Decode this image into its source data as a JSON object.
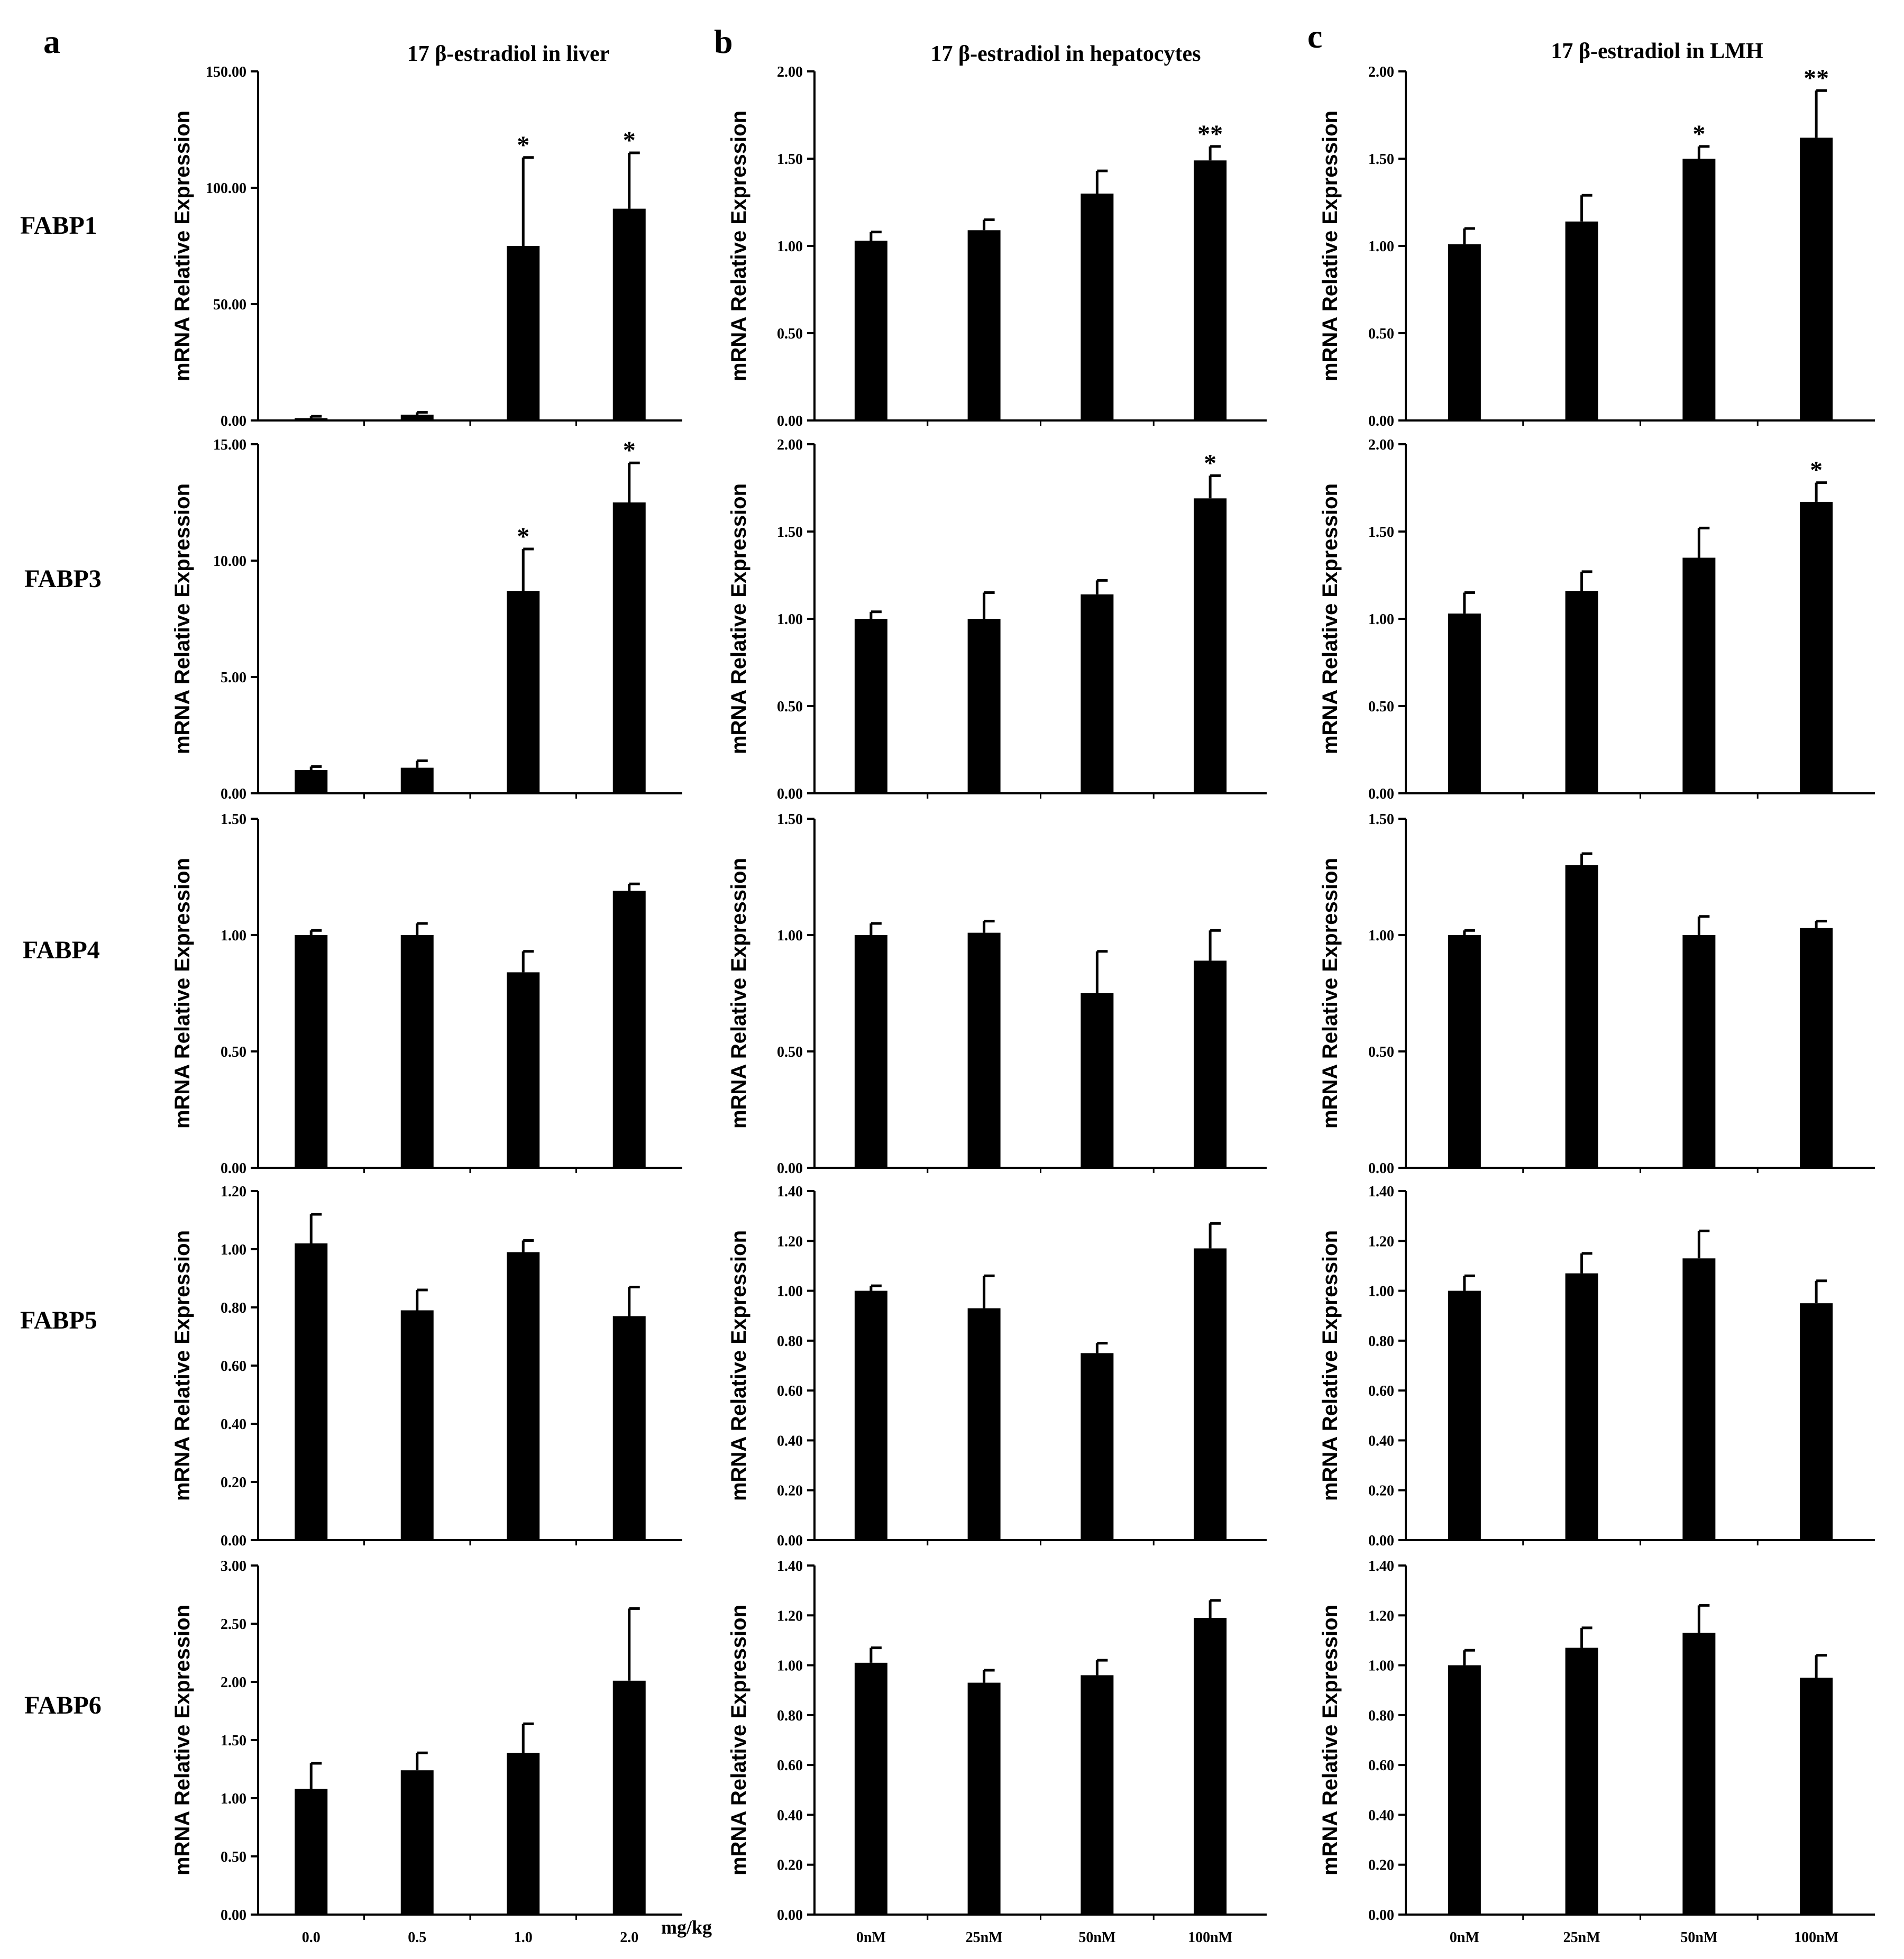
{
  "column_letters": [
    "a",
    "b",
    "c"
  ],
  "column_titles": [
    "17 β-estradiol in liver",
    "17 β-estradiol in hepatocytes",
    "17 β-estradiol in LMH"
  ],
  "row_labels": [
    "FABP1",
    "FABP3",
    "FABP4",
    "FABP5",
    "FABP6"
  ],
  "x_unit_label": "mg/kg",
  "chart_data": [
    {
      "type": "bar",
      "column": "a",
      "gene": "FABP1",
      "title": "17 β-estradiol in liver",
      "ylabel": "mRNA Relative Expression",
      "categories": [
        "0.0",
        "0.5",
        "1.0",
        "2.0"
      ],
      "values": [
        1.0,
        2.5,
        75,
        91
      ],
      "errors": [
        0.8,
        1.0,
        38,
        24
      ],
      "significance": [
        "",
        "",
        "*",
        "*"
      ],
      "ylim": [
        0,
        150
      ],
      "yticks": [
        "0.00",
        "50.00",
        "100.00",
        "150.00"
      ]
    },
    {
      "type": "bar",
      "column": "b",
      "gene": "FABP1",
      "title": "17 β-estradiol in hepatocytes",
      "ylabel": "mRNA Relative Expression",
      "categories": [
        "0nM",
        "25nM",
        "50nM",
        "100nM"
      ],
      "values": [
        1.03,
        1.09,
        1.3,
        1.49
      ],
      "errors": [
        0.05,
        0.06,
        0.13,
        0.08
      ],
      "significance": [
        "",
        "",
        "",
        "**"
      ],
      "ylim": [
        0,
        2
      ],
      "yticks": [
        "0.00",
        "0.50",
        "1.00",
        "1.50",
        "2.00"
      ]
    },
    {
      "type": "bar",
      "column": "c",
      "gene": "FABP1",
      "title": "17 β-estradiol in LMH",
      "ylabel": "mRNA Relative Expression",
      "categories": [
        "0nM",
        "25nM",
        "50nM",
        "100nM"
      ],
      "values": [
        1.01,
        1.14,
        1.5,
        1.62
      ],
      "errors": [
        0.09,
        0.15,
        0.07,
        0.27
      ],
      "significance": [
        "",
        "",
        "*",
        "**"
      ],
      "ylim": [
        0,
        2
      ],
      "yticks": [
        "0.00",
        "0.50",
        "1.00",
        "1.50",
        "2.00"
      ]
    },
    {
      "type": "bar",
      "column": "a",
      "gene": "FABP3",
      "ylabel": "mRNA Relative Expression",
      "categories": [
        "0.0",
        "0.5",
        "1.0",
        "2.0"
      ],
      "values": [
        1.0,
        1.1,
        8.7,
        12.5
      ],
      "errors": [
        0.15,
        0.3,
        1.8,
        1.7
      ],
      "significance": [
        "",
        "",
        "*",
        "*"
      ],
      "ylim": [
        0,
        15
      ],
      "yticks": [
        "0.00",
        "5.00",
        "10.00",
        "15.00"
      ]
    },
    {
      "type": "bar",
      "column": "b",
      "gene": "FABP3",
      "ylabel": "mRNA Relative Expression",
      "categories": [
        "0nM",
        "25nM",
        "50nM",
        "100nM"
      ],
      "values": [
        1.0,
        1.0,
        1.14,
        1.69
      ],
      "errors": [
        0.04,
        0.15,
        0.08,
        0.13
      ],
      "significance": [
        "",
        "",
        "",
        "*"
      ],
      "ylim": [
        0,
        2
      ],
      "yticks": [
        "0.00",
        "0.50",
        "1.00",
        "1.50",
        "2.00"
      ]
    },
    {
      "type": "bar",
      "column": "c",
      "gene": "FABP3",
      "ylabel": "mRNA Relative Expression",
      "categories": [
        "0nM",
        "25nM",
        "50nM",
        "100nM"
      ],
      "values": [
        1.03,
        1.16,
        1.35,
        1.67
      ],
      "errors": [
        0.12,
        0.11,
        0.17,
        0.11
      ],
      "significance": [
        "",
        "",
        "",
        "*"
      ],
      "ylim": [
        0,
        2
      ],
      "yticks": [
        "0.00",
        "0.50",
        "1.00",
        "1.50",
        "2.00"
      ]
    },
    {
      "type": "bar",
      "column": "a",
      "gene": "FABP4",
      "ylabel": "mRNA Relative Expression",
      "categories": [
        "0.0",
        "0.5",
        "1.0",
        "2.0"
      ],
      "values": [
        1.0,
        1.0,
        0.84,
        1.19
      ],
      "errors": [
        0.02,
        0.05,
        0.09,
        0.03
      ],
      "significance": [
        "",
        "",
        "",
        ""
      ],
      "ylim": [
        0,
        1.5
      ],
      "yticks": [
        "0.00",
        "0.50",
        "1.00",
        "1.50"
      ]
    },
    {
      "type": "bar",
      "column": "b",
      "gene": "FABP4",
      "ylabel": "mRNA Relative Expression",
      "categories": [
        "0nM",
        "25nM",
        "50nM",
        "100nM"
      ],
      "values": [
        1.0,
        1.01,
        0.75,
        0.89
      ],
      "errors": [
        0.05,
        0.05,
        0.18,
        0.13
      ],
      "significance": [
        "",
        "",
        "",
        ""
      ],
      "ylim": [
        0,
        1.5
      ],
      "yticks": [
        "0.00",
        "0.50",
        "1.00",
        "1.50"
      ]
    },
    {
      "type": "bar",
      "column": "c",
      "gene": "FABP4",
      "ylabel": "mRNA Relative Expression",
      "categories": [
        "0nM",
        "25nM",
        "50nM",
        "100nM"
      ],
      "values": [
        1.0,
        1.3,
        1.0,
        1.03
      ],
      "errors": [
        0.02,
        0.05,
        0.08,
        0.03
      ],
      "significance": [
        "",
        "",
        "",
        ""
      ],
      "ylim": [
        0,
        1.5
      ],
      "yticks": [
        "0.00",
        "0.50",
        "1.00",
        "1.50"
      ]
    },
    {
      "type": "bar",
      "column": "a",
      "gene": "FABP5",
      "ylabel": "mRNA Relative Expression",
      "categories": [
        "0.0",
        "0.5",
        "1.0",
        "2.0"
      ],
      "values": [
        1.02,
        0.79,
        0.99,
        0.77
      ],
      "errors": [
        0.1,
        0.07,
        0.04,
        0.1
      ],
      "significance": [
        "",
        "",
        "",
        ""
      ],
      "ylim": [
        0,
        1.2
      ],
      "yticks": [
        "0.00",
        "0.20",
        "0.40",
        "0.60",
        "0.80",
        "1.00",
        "1.20"
      ]
    },
    {
      "type": "bar",
      "column": "b",
      "gene": "FABP5",
      "ylabel": "mRNA Relative Expression",
      "categories": [
        "0nM",
        "25nM",
        "50nM",
        "100nM"
      ],
      "values": [
        1.0,
        0.93,
        0.75,
        1.17
      ],
      "errors": [
        0.02,
        0.13,
        0.04,
        0.1
      ],
      "significance": [
        "",
        "",
        "",
        ""
      ],
      "ylim": [
        0,
        1.4
      ],
      "yticks": [
        "0.00",
        "0.20",
        "0.40",
        "0.60",
        "0.80",
        "1.00",
        "1.20",
        "1.40"
      ]
    },
    {
      "type": "bar",
      "column": "c",
      "gene": "FABP5",
      "ylabel": "mRNA Relative Expression",
      "categories": [
        "0nM",
        "25nM",
        "50nM",
        "100nM"
      ],
      "values": [
        1.0,
        1.07,
        1.13,
        0.95
      ],
      "errors": [
        0.06,
        0.08,
        0.11,
        0.09
      ],
      "significance": [
        "",
        "",
        "",
        ""
      ],
      "ylim": [
        0,
        1.4
      ],
      "yticks": [
        "0.00",
        "0.20",
        "0.40",
        "0.60",
        "0.80",
        "1.00",
        "1.20",
        "1.40"
      ]
    },
    {
      "type": "bar",
      "column": "a",
      "gene": "FABP6",
      "ylabel": "mRNA Relative Expression",
      "categories": [
        "0.0",
        "0.5",
        "1.0",
        "2.0"
      ],
      "values": [
        1.08,
        1.24,
        1.39,
        2.01
      ],
      "errors": [
        0.22,
        0.15,
        0.25,
        0.62
      ],
      "significance": [
        "",
        "",
        "",
        ""
      ],
      "ylim": [
        0,
        3
      ],
      "yticks": [
        "0.00",
        "0.50",
        "1.00",
        "1.50",
        "2.00",
        "2.50",
        "3.00"
      ]
    },
    {
      "type": "bar",
      "column": "b",
      "gene": "FABP6",
      "ylabel": "mRNA Relative Expression",
      "categories": [
        "0nM",
        "25nM",
        "50nM",
        "100nM"
      ],
      "values": [
        1.01,
        0.93,
        0.96,
        1.19
      ],
      "errors": [
        0.06,
        0.05,
        0.06,
        0.07
      ],
      "significance": [
        "",
        "",
        "",
        ""
      ],
      "ylim": [
        0,
        1.4
      ],
      "yticks": [
        "0.00",
        "0.20",
        "0.40",
        "0.60",
        "0.80",
        "1.00",
        "1.20",
        "1.40"
      ]
    },
    {
      "type": "bar",
      "column": "c",
      "gene": "FABP6",
      "ylabel": "mRNA Relative Expression",
      "categories": [
        "0nM",
        "25nM",
        "50nM",
        "100nM"
      ],
      "values": [
        1.0,
        1.07,
        1.13,
        0.95
      ],
      "errors": [
        0.06,
        0.08,
        0.11,
        0.09
      ],
      "significance": [
        "",
        "",
        "",
        ""
      ],
      "ylim": [
        0,
        1.4
      ],
      "yticks": [
        "0.00",
        "0.20",
        "0.40",
        "0.60",
        "0.80",
        "1.00",
        "1.20",
        "1.40"
      ]
    }
  ]
}
